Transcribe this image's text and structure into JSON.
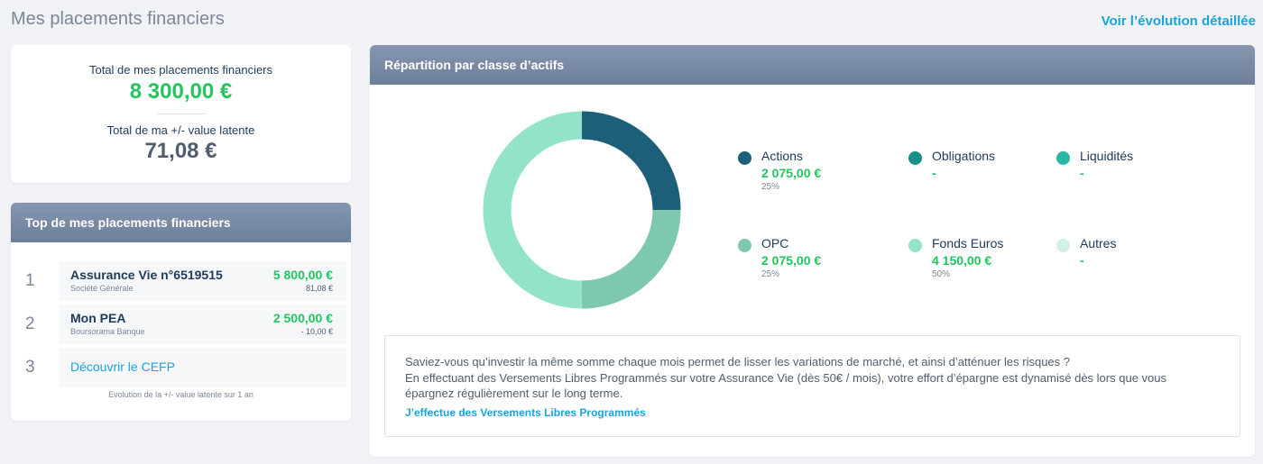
{
  "page": {
    "title": "Mes placements financiers",
    "detail_link": "Voir l’évolution détaillée"
  },
  "totals": {
    "total_label": "Total de mes placements financiers",
    "total_value": "8 300,00 €",
    "latent_label": "Total de ma +/- value latente",
    "latent_value": "71,08 €"
  },
  "top": {
    "header": "Top de mes placements financiers",
    "items": [
      {
        "rank": "1",
        "name": "Assurance Vie n°6519515",
        "sub": "Société Générale",
        "amount": "5 800,00 €",
        "pv": "81,08 €"
      },
      {
        "rank": "2",
        "name": "Mon PEA",
        "sub": "Boursorama Banque",
        "amount": "2 500,00 €",
        "pv": "- 10,00 €"
      }
    ],
    "cta": {
      "rank": "3",
      "label": "Découvrir le CEFP"
    },
    "footnote": "Evolution de la +/- value latente sur 1 an"
  },
  "repartition": {
    "header": "Répartition par classe d’actifs",
    "legend": [
      {
        "name": "Actions",
        "value": "2 075,00 €",
        "pct": "25%",
        "color": "#1d5e78"
      },
      {
        "name": "Obligations",
        "value": "-",
        "pct": "",
        "color": "#1a8f86"
      },
      {
        "name": "Liquidités",
        "value": "-",
        "pct": "",
        "color": "#2bb5a5"
      },
      {
        "name": "OPC",
        "value": "2 075,00 €",
        "pct": "25%",
        "color": "#7ec8ad"
      },
      {
        "name": "Fonds Euros",
        "value": "4 150,00 €",
        "pct": "50%",
        "color": "#92e3c9"
      },
      {
        "name": "Autres",
        "value": "-",
        "pct": "",
        "color": "#d2f1e5"
      }
    ],
    "donut": [
      {
        "name": "Actions",
        "fraction": 0.25,
        "color": "#1d5e78"
      },
      {
        "name": "OPC",
        "fraction": 0.25,
        "color": "#7ec8ad"
      },
      {
        "name": "Fonds Euros",
        "fraction": 0.5,
        "color": "#92e3c9"
      }
    ]
  },
  "tip": {
    "line1": "Saviez-vous qu’investir la même somme chaque mois permet de lisser les variations de marché, et ainsi d’atténuer les risques ?",
    "line2": "En effectuant des Versements Libres Programmés sur votre Assurance Vie (dès 50€ / mois), votre effort d’épargne est dynamisé dès lors que vous épargnez régulièrement sur le long terme.",
    "link": "J’effectue des Versements Libres Programmés"
  }
}
